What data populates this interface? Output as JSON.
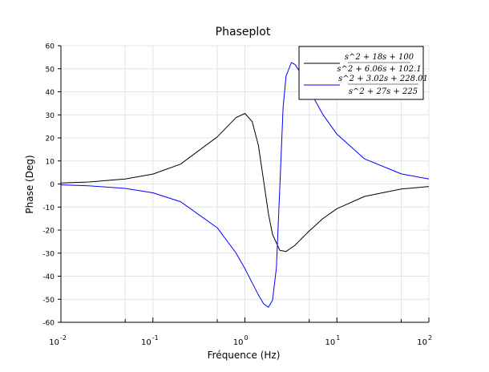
{
  "chart_data": {
    "type": "line",
    "title": "Phaseplot",
    "xlabel": "Fréquence (Hz)",
    "ylabel": "Phase (Deg)",
    "xscale": "log",
    "xlim": [
      0.01,
      100
    ],
    "ylim": [
      -60,
      60
    ],
    "grid": true,
    "legend_position": "top-right",
    "x_ticks": [
      {
        "base": "10",
        "exp": "-2",
        "value": 0.01
      },
      {
        "base": "10",
        "exp": "-1",
        "value": 0.1
      },
      {
        "base": "10",
        "exp": "0",
        "value": 1
      },
      {
        "base": "10",
        "exp": "1",
        "value": 10
      },
      {
        "base": "10",
        "exp": "2",
        "value": 100
      }
    ],
    "y_ticks": [
      -60,
      -50,
      -40,
      -30,
      -20,
      -10,
      0,
      10,
      20,
      30,
      40,
      50,
      60
    ],
    "series": [
      {
        "name": "(s^2+18s+100)/(s^2+6.06s+102.1)",
        "numerator": "s^2 + 18s + 100",
        "denominator": "s^2 + 6.06s + 102.1",
        "color": "#000000",
        "x": [
          0.01,
          0.02,
          0.05,
          0.1,
          0.2,
          0.5,
          0.8,
          1,
          1.2,
          1.4,
          1.6,
          1.8,
          2,
          2.4,
          2.8,
          3.5,
          5,
          7,
          10,
          20,
          50,
          100
        ],
        "y": [
          0.43,
          0.87,
          2.17,
          4.33,
          8.62,
          20.4,
          28.8,
          30.6,
          27.1,
          16.8,
          1.3,
          -12.8,
          -21.9,
          -28.8,
          -29.3,
          -26.6,
          -20.4,
          -15.1,
          -10.7,
          -5.4,
          -2.18,
          -1.09
        ]
      },
      {
        "name": "(s^2+3.02s+228.01)/(s^2+27s+225)",
        "numerator": "s^2 + 3.02s + 228.01",
        "denominator": "s^2 + 27s + 225",
        "color": "#0000ff",
        "x": [
          0.01,
          0.02,
          0.05,
          0.1,
          0.2,
          0.5,
          0.8,
          1,
          1.2,
          1.4,
          1.6,
          1.8,
          2,
          2.2,
          2.4,
          2.6,
          2.8,
          3.2,
          3.5,
          4,
          5,
          7,
          10,
          20,
          50,
          100
        ],
        "y": [
          -0.38,
          -0.77,
          -1.92,
          -3.84,
          -7.67,
          -19.0,
          -29.9,
          -36.7,
          -42.9,
          -48.1,
          -52.0,
          -53.5,
          -50.4,
          -36.3,
          -1.1,
          32.8,
          46.8,
          52.7,
          51.9,
          48.4,
          40.9,
          30.3,
          21.6,
          10.9,
          4.37,
          2.19
        ]
      }
    ]
  }
}
